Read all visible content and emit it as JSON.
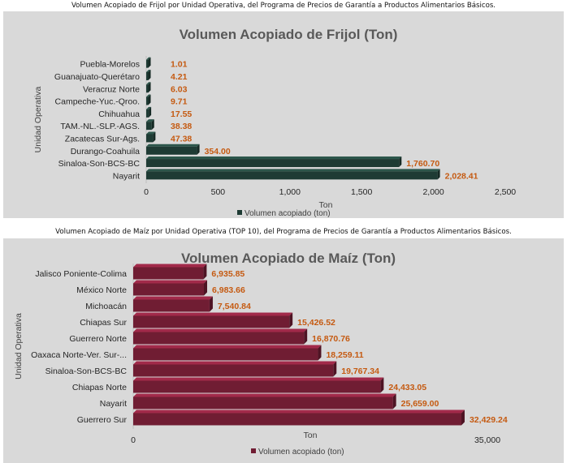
{
  "captions": {
    "top": "Volumen Acopiado de Frijol por Unidad Operativa, del Programa de Precios de Garantía a Productos Alimentarios Básicos.",
    "bottom": "Volumen Acopiado de Maíz por Unidad Operativa (TOP 10), del Programa de Precios de Garantía a Productos Alimentarios Básicos."
  },
  "chart_data": [
    {
      "type": "bar",
      "orientation": "horizontal",
      "title": "Volumen Acopiado de Frijol (Ton)",
      "xlabel": "Ton",
      "ylabel": "Unidad Operativa",
      "categories": [
        "Puebla-Morelos",
        "Guanajuato-Querétaro",
        "Veracruz Norte",
        "Campeche-Yuc.-Qroo.",
        "Chihuahua",
        "TAM.-NL.-SLP.-AGS.",
        "Zacatecas Sur-Ags.",
        "Durango-Coahuila",
        "Sinaloa-Son-BCS-BC",
        "Nayarit"
      ],
      "series": [
        {
          "name": "Volumen acopiado (ton)",
          "values": [
            1.01,
            4.21,
            6.03,
            9.71,
            17.55,
            38.38,
            47.38,
            354.0,
            1760.7,
            2028.41
          ]
        }
      ],
      "data_labels": [
        "1.01",
        "4.21",
        "6.03",
        "9.71",
        "17.55",
        "38.38",
        "47.38",
        "354.00",
        "1,760.70",
        "2,028.41"
      ],
      "xlim": [
        0,
        2500
      ],
      "xticks": [
        0,
        500,
        1000,
        1500,
        2000,
        2500
      ],
      "xtick_labels": [
        "0",
        "500",
        "1,000",
        "1,500",
        "2,000",
        "2,500"
      ],
      "legend": "bottom",
      "bar_color": "#1e3b34"
    },
    {
      "type": "bar",
      "orientation": "horizontal",
      "title": "Volumen Acopiado de Maíz (Ton)",
      "xlabel": "Ton",
      "ylabel": "Unidad Operativa",
      "categories": [
        "Jalisco Poniente-Colima",
        "México Norte",
        "Michoacán",
        "Chiapas Sur",
        "Guerrero Norte",
        "Oaxaca Norte-Ver. Sur-...",
        "Sinaloa-Son-BCS-BC",
        "Chiapas Norte",
        "Nayarit",
        "Guerrero Sur"
      ],
      "series": [
        {
          "name": "Volumen acopiado (ton)",
          "values": [
            6935.85,
            6983.66,
            7540.84,
            15426.52,
            16870.76,
            18259.11,
            19767.34,
            24433.05,
            25659.0,
            32429.24
          ]
        }
      ],
      "data_labels": [
        "6,935.85",
        "6,983.66",
        "7,540.84",
        "15,426.52",
        "16,870.76",
        "18,259.11",
        "19,767.34",
        "24,433.05",
        "25,659.00",
        "32,429.24"
      ],
      "xlim": [
        0,
        35000
      ],
      "xticks": [
        0,
        35000
      ],
      "xtick_labels": [
        "0",
        "35,000"
      ],
      "legend": "bottom",
      "bar_color": "#701d33"
    }
  ]
}
